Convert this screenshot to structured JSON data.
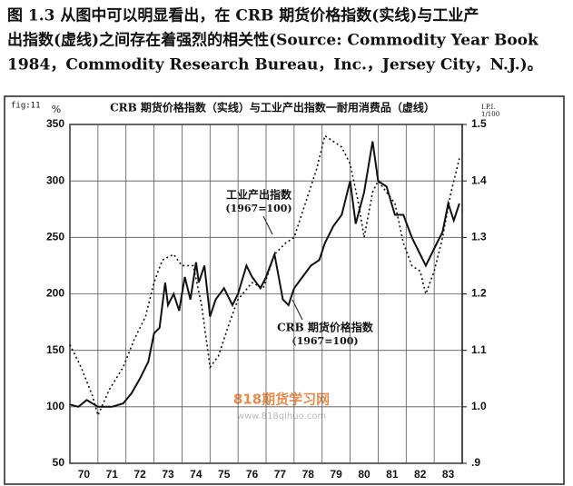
{
  "caption": [
    "图 1.3  从图中可以明显看出，在 CRB 期货价格指数(实线)与工业产",
    "出指数(虚线)之间存在着强烈的相关性(Source: Commodity Year Book",
    "1984，Commodity Research Bureau，Inc.，Jersey City，N.J.)。"
  ],
  "watermark": [
    "818期货学习网",
    "www.818qihuo.com"
  ],
  "chart_data": {
    "type": "line",
    "figure_id": "fig:11",
    "title": "CRB 期货价格指数（实线）与工业产出指数一耐用消费品（虚线）",
    "ylabel": "%",
    "y2label": [
      "I.P.I.",
      "1/100"
    ],
    "annotations": [
      [
        "工业产出指数",
        "(1967=100)"
      ],
      [
        "CRB 期货价格指数",
        "(1967=100)"
      ]
    ],
    "xlim": [
      1970,
      1984
    ],
    "xticks": [
      {
        "value": 1970,
        "label": "70"
      },
      {
        "value": 1971,
        "label": "71"
      },
      {
        "value": 1972,
        "label": "72"
      },
      {
        "value": 1973,
        "label": "73"
      },
      {
        "value": 1974,
        "label": "74"
      },
      {
        "value": 1975,
        "label": "75"
      },
      {
        "value": 1976,
        "label": "76"
      },
      {
        "value": 1977,
        "label": "77"
      },
      {
        "value": 1978,
        "label": "78"
      },
      {
        "value": 1979,
        "label": "79"
      },
      {
        "value": 1980,
        "label": "80"
      },
      {
        "value": 1981,
        "label": "81"
      },
      {
        "value": 1982,
        "label": "82"
      },
      {
        "value": 1983,
        "label": "83"
      }
    ],
    "ylim": [
      50,
      350
    ],
    "yticks": [
      50,
      100,
      150,
      200,
      250,
      300,
      350
    ],
    "y2lim": [
      0.9,
      1.5
    ],
    "y2ticks": [
      {
        "value": 0.9,
        "label": ".9"
      },
      {
        "value": 1,
        "label": "1.0"
      },
      1.1,
      1.2,
      1.3,
      1.4,
      1.5
    ],
    "grid": true,
    "series": [
      {
        "name": "CRB 期货价格指数",
        "color": "#111111",
        "style": "solid",
        "axis": "y",
        "x": [
          1970.0,
          1970.3,
          1970.6,
          1971.0,
          1971.5,
          1971.9,
          1972.2,
          1972.5,
          1972.8,
          1973.0,
          1973.2,
          1973.4,
          1973.5,
          1973.7,
          1973.9,
          1974.1,
          1974.3,
          1974.5,
          1974.6,
          1974.8,
          1975.0,
          1975.2,
          1975.5,
          1975.8,
          1976.0,
          1976.3,
          1976.5,
          1976.8,
          1977.0,
          1977.3,
          1977.6,
          1977.8,
          1978.0,
          1978.3,
          1978.6,
          1978.9,
          1979.1,
          1979.4,
          1979.7,
          1980.0,
          1980.2,
          1980.5,
          1980.8,
          1981.0,
          1981.3,
          1981.6,
          1981.9,
          1982.2,
          1982.5,
          1982.7,
          1983.0,
          1983.3,
          1983.5,
          1983.7,
          1983.9
        ],
        "values": [
          102,
          100,
          106,
          100,
          100,
          103,
          112,
          125,
          140,
          165,
          170,
          210,
          190,
          200,
          185,
          215,
          195,
          228,
          210,
          225,
          180,
          195,
          205,
          190,
          200,
          225,
          215,
          205,
          215,
          235,
          195,
          190,
          205,
          215,
          225,
          230,
          245,
          260,
          270,
          300,
          262,
          290,
          335,
          300,
          295,
          270,
          270,
          250,
          235,
          225,
          240,
          255,
          280,
          265,
          280
        ]
      },
      {
        "name": "工业产出指数",
        "color": "#111111",
        "style": "dashed",
        "axis": "y2",
        "x": [
          1970.0,
          1970.4,
          1970.8,
          1971.0,
          1971.4,
          1971.9,
          1972.3,
          1972.7,
          1973.0,
          1973.3,
          1973.7,
          1974.0,
          1974.4,
          1974.7,
          1975.0,
          1975.3,
          1975.7,
          1976.0,
          1976.5,
          1976.9,
          1977.3,
          1977.7,
          1978.0,
          1978.4,
          1978.8,
          1979.1,
          1979.4,
          1979.7,
          1980.0,
          1980.3,
          1980.5,
          1980.8,
          1981.0,
          1981.3,
          1981.6,
          1981.9,
          1982.2,
          1982.5,
          1982.7,
          1983.0,
          1983.3,
          1983.6,
          1983.9
        ],
        "values": [
          1.11,
          1.07,
          1.02,
          0.985,
          1.03,
          1.07,
          1.12,
          1.16,
          1.22,
          1.26,
          1.27,
          1.25,
          1.25,
          1.18,
          1.07,
          1.09,
          1.15,
          1.19,
          1.22,
          1.21,
          1.27,
          1.29,
          1.3,
          1.36,
          1.42,
          1.48,
          1.47,
          1.46,
          1.43,
          1.36,
          1.3,
          1.38,
          1.4,
          1.38,
          1.36,
          1.29,
          1.25,
          1.24,
          1.2,
          1.24,
          1.3,
          1.38,
          1.44
        ]
      }
    ]
  }
}
